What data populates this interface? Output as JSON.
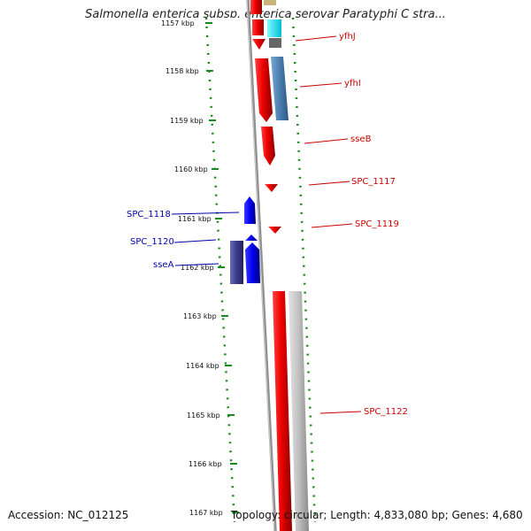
{
  "title": "Salmonella enterica subsp. enterica serovar Paratyphi C stra...",
  "footer": {
    "accession": "Accession: NC_012125",
    "summary": "Topology: circular; Length: 4,833,080 bp; Genes: 4,680"
  },
  "ruler": {
    "ticks": [
      {
        "label": "1157 kbp"
      },
      {
        "label": "1158 kbp"
      },
      {
        "label": "1159 kbp"
      },
      {
        "label": "1160 kbp"
      },
      {
        "label": "1161 kbp"
      },
      {
        "label": "1162 kbp"
      },
      {
        "label": "1163 kbp"
      },
      {
        "label": "1164 kbp"
      },
      {
        "label": "1165 kbp"
      },
      {
        "label": "1166 kbp"
      },
      {
        "label": "1167 kbp"
      }
    ]
  },
  "genes": [
    {
      "name": "yfhJ",
      "color": "#cc0000"
    },
    {
      "name": "yfhI",
      "color": "#cc0000"
    },
    {
      "name": "sseB",
      "color": "#cc0000"
    },
    {
      "name": "SPC_1117",
      "color": "#cc0000"
    },
    {
      "name": "SPC_1119",
      "color": "#cc0000"
    },
    {
      "name": "SPC_1122",
      "color": "#cc0000"
    },
    {
      "name": "SPC_1118",
      "color": "#0000aa"
    },
    {
      "name": "SPC_1120",
      "color": "#0000aa"
    },
    {
      "name": "sseA",
      "color": "#0000aa"
    }
  ],
  "colors": {
    "forward_cds": "#e00000",
    "reverse_cds": "#0000ee",
    "cog_blue": "#4a7fb0",
    "cog_navy": "#3a3a8c",
    "cog_cyan": "#00e5ee",
    "cog_gray": "#bbbbbb",
    "backbone": "#888888",
    "ticks": "#1a8a1a"
  }
}
